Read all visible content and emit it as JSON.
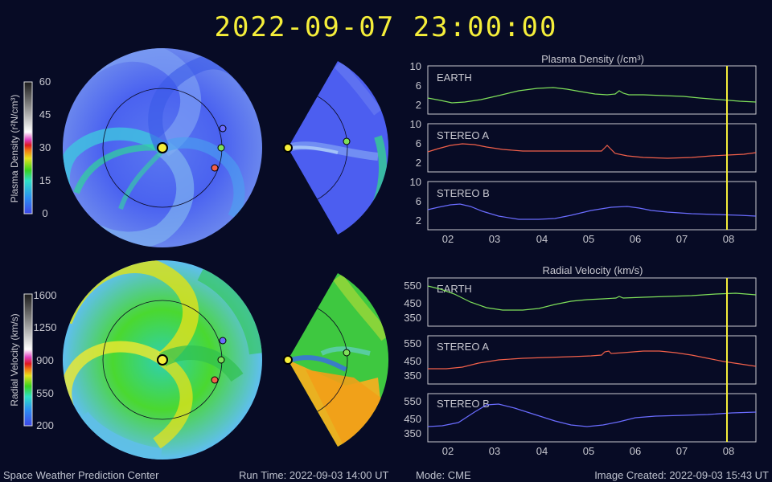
{
  "header": {
    "timestamp": "2022-09-07  23:00:00"
  },
  "density_scale": {
    "label": "Plasma Density (r²N/cm³)",
    "ticks": [
      "60",
      "45",
      "30",
      "15",
      "0"
    ]
  },
  "velocity_scale": {
    "label": "Radial Velocity (km/s)",
    "ticks": [
      "1600",
      "1250",
      "900",
      "550",
      "200"
    ]
  },
  "density_panel": {
    "title": "Plasma Density (/cm³)",
    "rows": [
      {
        "label": "EARTH",
        "yticks": [
          "10",
          "6",
          "2"
        ],
        "color": "#7fe05a"
      },
      {
        "label": "STEREO A",
        "yticks": [
          "10",
          "6",
          "2"
        ],
        "color": "#f2604a"
      },
      {
        "label": "STEREO B",
        "yticks": [
          "10",
          "6",
          "2"
        ],
        "color": "#6a6cff"
      }
    ]
  },
  "velocity_panel": {
    "title": "Radial Velocity (km/s)",
    "rows": [
      {
        "label": "EARTH",
        "yticks": [
          "550",
          "450",
          "350"
        ],
        "color": "#7fe05a"
      },
      {
        "label": "STEREO A",
        "yticks": [
          "550",
          "450",
          "350"
        ],
        "color": "#f2604a"
      },
      {
        "label": "STEREO B",
        "yticks": [
          "550",
          "450",
          "350"
        ],
        "color": "#6a6cff"
      }
    ]
  },
  "x_ticks": [
    "02",
    "03",
    "04",
    "05",
    "06",
    "07",
    "08"
  ],
  "footer": {
    "org": "Space Weather Prediction Center",
    "run_time": "Run Time: 2022-09-03 14:00 UT",
    "mode": "Mode: CME",
    "created": "Image Created: 2022-09-03 15:43 UT"
  },
  "colors": {
    "current_time_marker": "#f5ee3a",
    "sun": "#f5ee3a",
    "earth": "#7fe05a",
    "stereo_a": "#f2604a",
    "stereo_b": "#6a6cff"
  }
}
